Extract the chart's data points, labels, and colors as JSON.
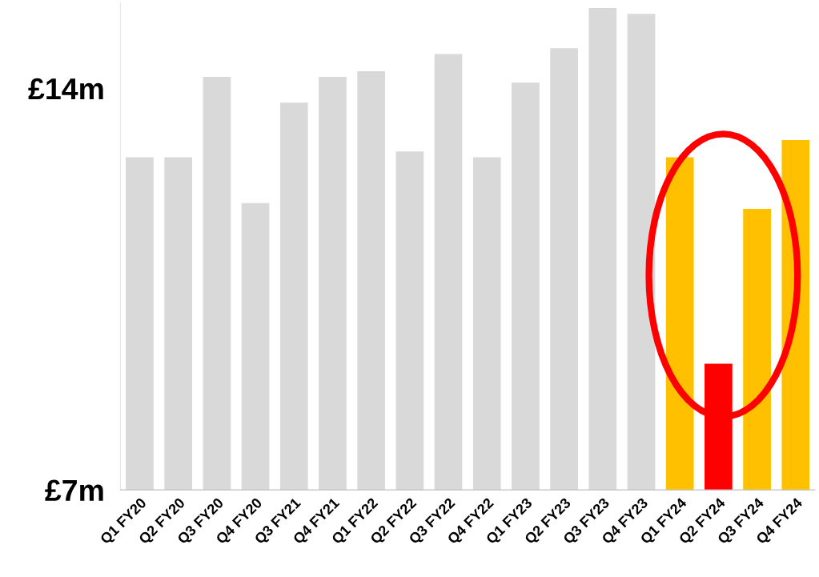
{
  "chart_data": {
    "type": "bar",
    "categories": [
      "Q1 FY20",
      "Q2 FY20",
      "Q3 FY20",
      "Q4 FY20",
      "Q3 FY21",
      "Q4 FY21",
      "Q1 FY22",
      "Q2 FY22",
      "Q3 FY22",
      "Q4 FY22",
      "Q1 FY23",
      "Q2 FY23",
      "Q3 FY23",
      "Q4 FY23",
      "Q1 FY24",
      "Q2 FY24",
      "Q3 FY24",
      "Q4 FY24"
    ],
    "values": [
      12.8,
      12.8,
      14.2,
      12.0,
      13.75,
      14.2,
      14.3,
      12.9,
      14.6,
      12.8,
      14.1,
      14.7,
      15.4,
      15.3,
      12.8,
      9.2,
      11.9,
      13.1
    ],
    "colors": [
      "#d9d9d9",
      "#d9d9d9",
      "#d9d9d9",
      "#d9d9d9",
      "#d9d9d9",
      "#d9d9d9",
      "#d9d9d9",
      "#d9d9d9",
      "#d9d9d9",
      "#d9d9d9",
      "#d9d9d9",
      "#d9d9d9",
      "#d9d9d9",
      "#d9d9d9",
      "#ffc000",
      "#ff0000",
      "#ffc000",
      "#ffc000"
    ],
    "ylim": [
      7,
      15.5
    ],
    "yticks": [
      {
        "value": 7,
        "label": "£7m"
      },
      {
        "value": 14,
        "label": "£14m"
      }
    ],
    "grid": false
  }
}
